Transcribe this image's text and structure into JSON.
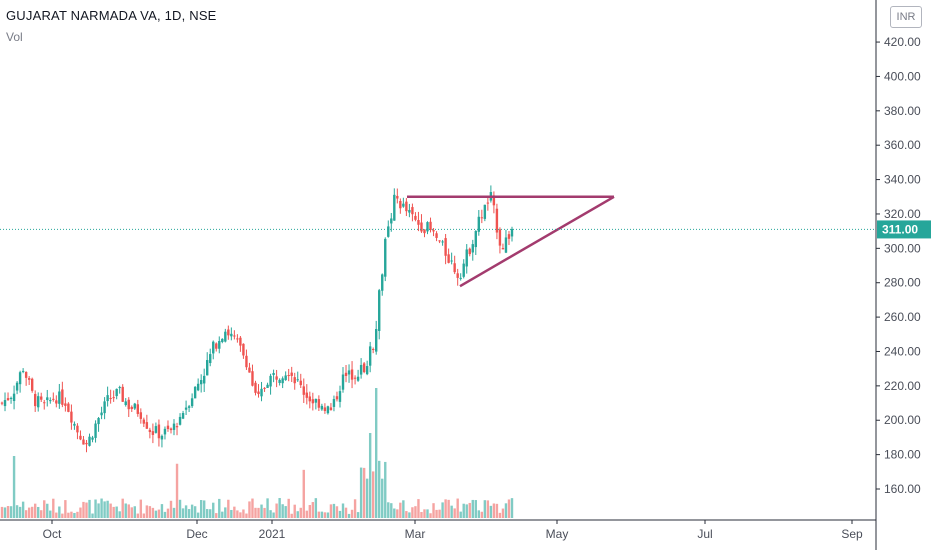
{
  "header": {
    "symbol_line": "GUJARAT NARMADA VA, 1D, NSE",
    "volume_label": "Vol",
    "currency_badge": "INR",
    "price_tag": "311.00"
  },
  "colors": {
    "up": "#26a69a",
    "down": "#ef5350",
    "vol_up": "#80cbc4",
    "vol_down": "#f5a3a1",
    "trendline": "#a33b6e",
    "price_line": "#26a69a"
  },
  "chart_data": {
    "type": "candlestick",
    "title": "GUJARAT NARMADA VA, 1D, NSE",
    "y_axis": {
      "ticks": [
        160,
        180,
        200,
        220,
        240,
        260,
        280,
        300,
        320,
        340,
        360,
        380,
        400,
        420
      ],
      "range": [
        140,
        440
      ]
    },
    "x_axis": {
      "ticks": [
        "Oct",
        "Dec",
        "2021",
        "Mar",
        "May",
        "Jul",
        "Sep"
      ]
    },
    "last_price": 311.0,
    "price_path": [
      [
        "Sep",
        210
      ],
      [
        "Sep",
        216
      ],
      [
        "Sep",
        231
      ],
      [
        "Sep",
        212
      ],
      [
        "Oct",
        208
      ],
      [
        "Oct",
        214
      ],
      [
        "Oct",
        211
      ],
      [
        "Oct",
        195
      ],
      [
        "Oct",
        186
      ],
      [
        "Oct",
        200
      ],
      [
        "Oct",
        212
      ],
      [
        "Nov",
        216
      ],
      [
        "Nov",
        208
      ],
      [
        "Nov",
        205
      ],
      [
        "Nov",
        194
      ],
      [
        "Nov",
        192
      ],
      [
        "Nov",
        194
      ],
      [
        "Dec",
        205
      ],
      [
        "Dec",
        216
      ],
      [
        "Dec",
        228
      ],
      [
        "Dec",
        244
      ],
      [
        "Dec",
        253
      ],
      [
        "Dec",
        246
      ],
      [
        "Dec",
        235
      ],
      [
        "Dec",
        210
      ],
      [
        "2021",
        224
      ],
      [
        "2021",
        227
      ],
      [
        "2021",
        230
      ],
      [
        "2021",
        220
      ],
      [
        "Feb",
        212
      ],
      [
        "Feb",
        210
      ],
      [
        "Feb",
        205
      ],
      [
        "Feb",
        224
      ],
      [
        "Feb",
        227
      ],
      [
        "Feb",
        230
      ],
      [
        "Feb",
        245
      ],
      [
        "Mar",
        300
      ],
      [
        "Mar",
        330
      ],
      [
        "Mar",
        322
      ],
      [
        "Mar",
        315
      ],
      [
        "Mar",
        312
      ],
      [
        "Mar",
        305
      ],
      [
        "Mar",
        295
      ],
      [
        "Apr",
        284
      ],
      [
        "Apr",
        300
      ],
      [
        "Apr",
        318
      ],
      [
        "Apr",
        330
      ],
      [
        "Apr",
        300
      ],
      [
        "Apr",
        311
      ]
    ],
    "trendlines": [
      {
        "type": "resistance",
        "from": [
          "Mar",
          330
        ],
        "to": [
          "May",
          330
        ]
      },
      {
        "type": "support",
        "from": [
          "Mar",
          278
        ],
        "to": [
          "May",
          330
        ]
      }
    ],
    "volume_series": "Vol"
  }
}
